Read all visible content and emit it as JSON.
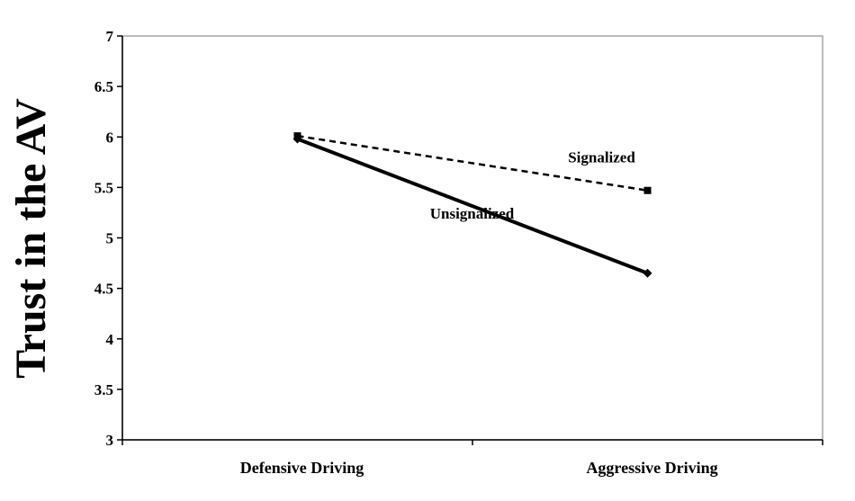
{
  "chart_data": {
    "type": "line",
    "title": "",
    "xlabel": "",
    "ylabel": "Trust in the  AV",
    "ylim": [
      3,
      7
    ],
    "ytick_step": 0.5,
    "yticks": [
      "3",
      "3.5",
      "4",
      "4.5",
      "5",
      "5.5",
      "6",
      "6.5",
      "7"
    ],
    "categories": [
      "Defensive Driving",
      "Aggressive Driving"
    ],
    "grid": false,
    "legend": "none (series labelled directly on the lines)",
    "series": [
      {
        "name": "Signalized",
        "values": [
          6.01,
          5.47
        ],
        "line_style": "dashed",
        "marker": "square",
        "color": "#000000"
      },
      {
        "name": "Unsignalized",
        "values": [
          5.98,
          4.65
        ],
        "line_style": "solid",
        "marker": "diamond",
        "color": "#000000"
      }
    ]
  }
}
